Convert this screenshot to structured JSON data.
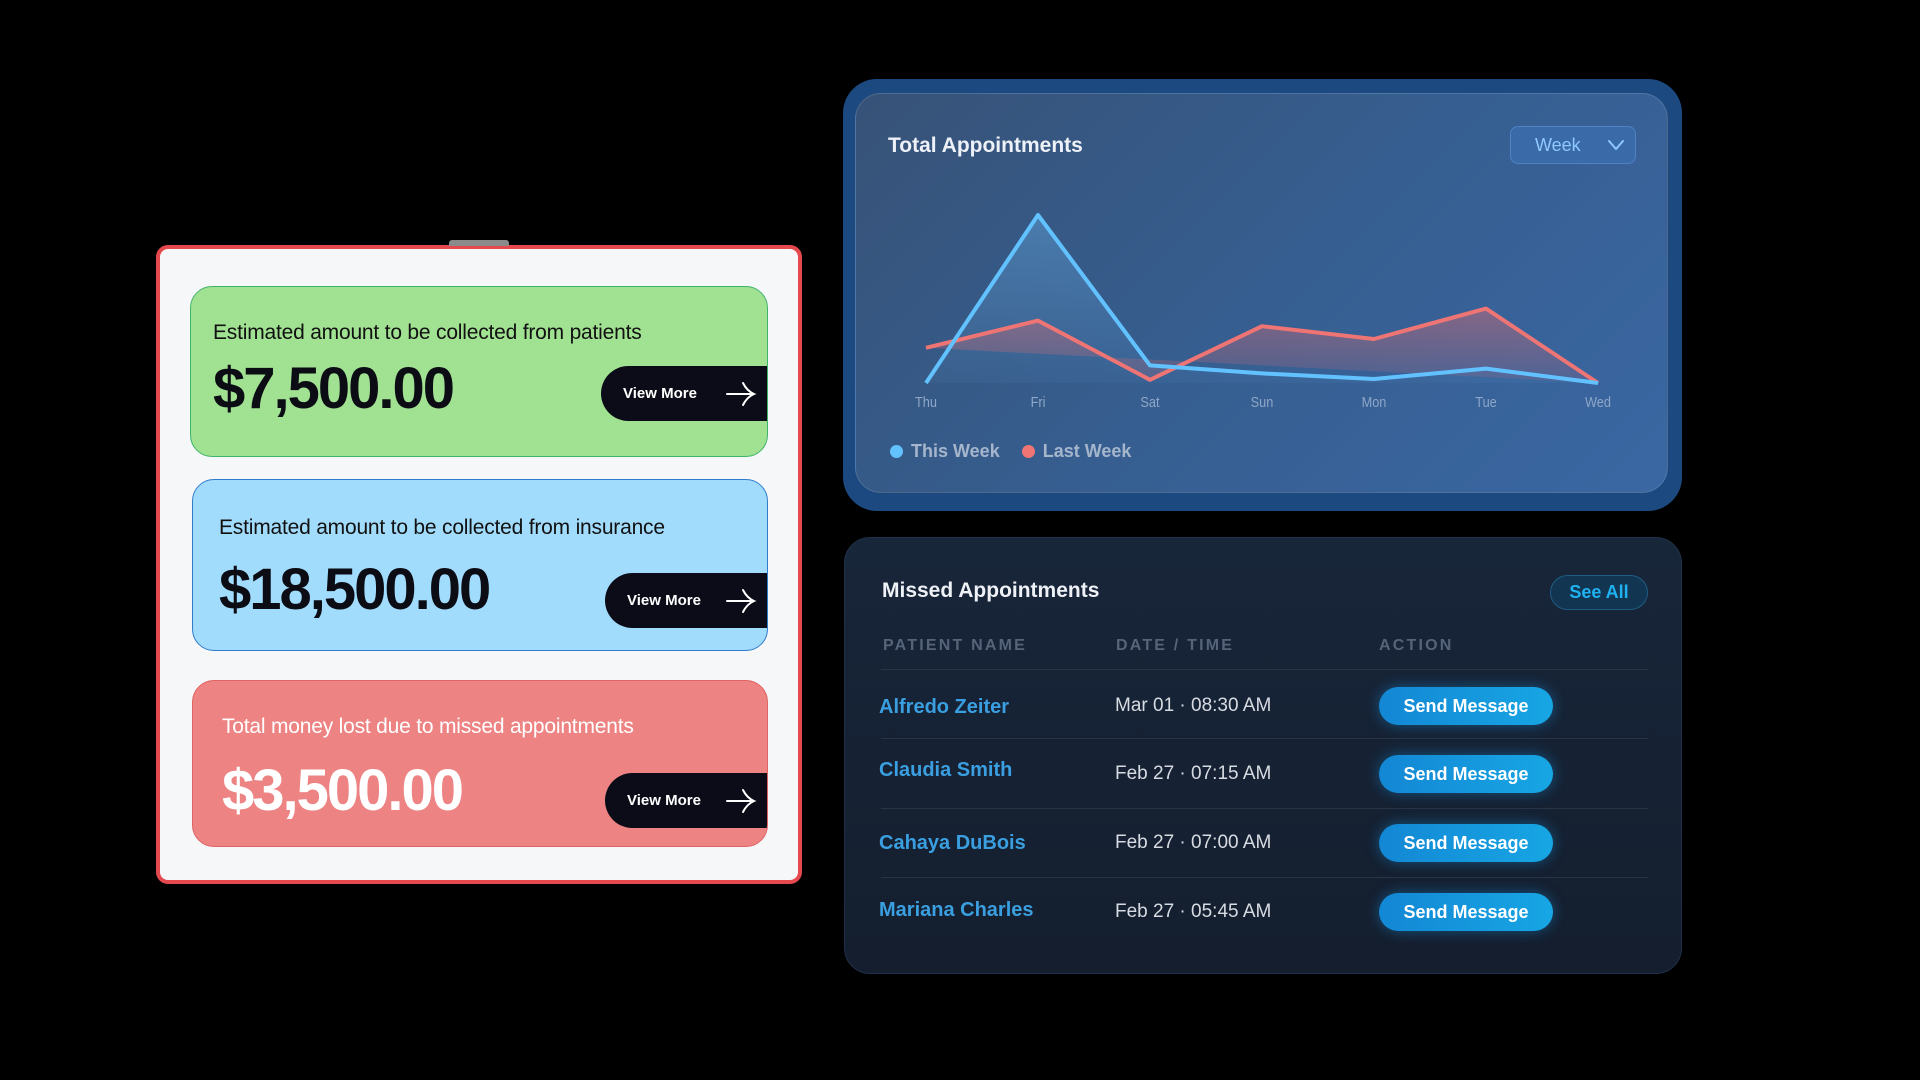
{
  "summary": {
    "cards": [
      {
        "label": "Estimated amount to be collected from patients",
        "amount": "$7,500.00",
        "button": "View More",
        "color": "#a1e192"
      },
      {
        "label": "Estimated amount to be collected from insurance",
        "amount": "$18,500.00",
        "button": "View More",
        "color": "#a2dcfc"
      },
      {
        "label": "Total money lost due to missed appointments",
        "amount": "$3,500.00",
        "button": "View More",
        "color": "#ed8383"
      }
    ]
  },
  "appointments_chart": {
    "title": "Total Appointments",
    "period_select": "Week",
    "legend": [
      {
        "label": "This Week",
        "color": "#62c2ff"
      },
      {
        "label": "Last Week",
        "color": "#ef7474"
      }
    ]
  },
  "chart_data": {
    "type": "line",
    "title": "Total Appointments",
    "xlabel": "",
    "ylabel": "",
    "categories": [
      "Thu",
      "Fri",
      "Sat",
      "Sun",
      "Mon",
      "Tue",
      "Wed"
    ],
    "series": [
      {
        "name": "This Week",
        "color": "#62c2ff",
        "values": [
          1,
          22,
          3.2,
          2.2,
          1.5,
          2.8,
          1
        ]
      },
      {
        "name": "Last Week",
        "color": "#ef7474",
        "values": [
          5.4,
          8.8,
          1.4,
          8.1,
          6.5,
          10.3,
          1
        ]
      }
    ],
    "ylim": [
      0,
      24
    ],
    "grid": false,
    "legend_position": "bottom-left"
  },
  "missed": {
    "title": "Missed Appointments",
    "see_all": "See All",
    "columns": [
      "PATIENT NAME",
      "DATE / TIME",
      "ACTION"
    ],
    "rows": [
      {
        "name": "Alfredo Zeiter",
        "datetime": "Mar 01 · 08:30 AM",
        "action": "Send Message"
      },
      {
        "name": "Claudia Smith",
        "datetime": "Feb 27 · 07:15 AM",
        "action": "Send Message"
      },
      {
        "name": "Cahaya DuBois",
        "datetime": "Feb 27 · 07:00 AM",
        "action": "Send Message"
      },
      {
        "name": "Mariana Charles",
        "datetime": "Feb 27 · 05:45 AM",
        "action": "Send Message"
      }
    ]
  }
}
